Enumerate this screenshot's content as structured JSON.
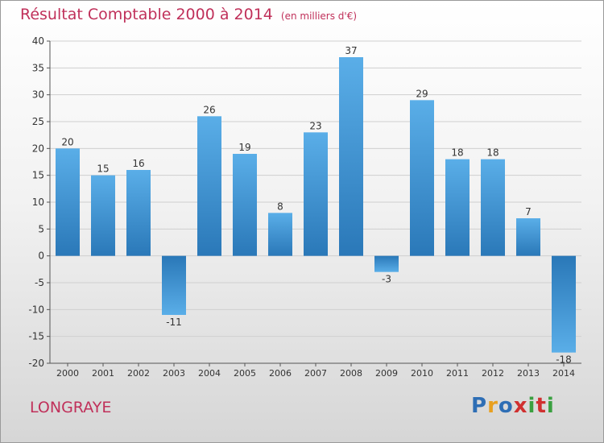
{
  "header": {
    "title": "Résultat Comptable 2000 à 2014",
    "subtitle": "(en milliers d'€)"
  },
  "footer": {
    "location": "LONGRAYE",
    "brand_letters": [
      "P",
      "r",
      "o",
      "x",
      "i",
      "t",
      "i"
    ]
  },
  "colors": {
    "title": "#c0305a",
    "bar_light": "#5aaee8",
    "bar_dark": "#2a78b8",
    "brand": [
      "#2e6eb5",
      "#e8a020",
      "#2e6eb5",
      "#d03030",
      "#3aa040",
      "#d03030",
      "#3aa040"
    ]
  },
  "chart_data": {
    "type": "bar",
    "title": "Résultat Comptable 2000 à 2014",
    "subtitle": "(en milliers d'€)",
    "xlabel": "",
    "ylabel": "",
    "ylim": [
      -20,
      40
    ],
    "yticks": [
      40,
      35,
      30,
      25,
      20,
      15,
      10,
      5,
      0,
      -5,
      -10,
      -15,
      -20
    ],
    "ytick_labels": [
      "40",
      "35",
      "30",
      "25",
      "20",
      "15",
      "10",
      "5",
      "0",
      "-5",
      "-10",
      "-15",
      "-20"
    ],
    "grid": "horizontal",
    "categories": [
      "2000",
      "2001",
      "2002",
      "2003",
      "2004",
      "2005",
      "2006",
      "2007",
      "2008",
      "2009",
      "2010",
      "2011",
      "2012",
      "2013",
      "2014"
    ],
    "values": [
      20,
      15,
      16,
      -11,
      26,
      19,
      8,
      23,
      37,
      -3,
      29,
      18,
      18,
      7,
      -18
    ],
    "value_labels": [
      "20",
      "15",
      "16",
      "-11",
      "26",
      "19",
      "8",
      "23",
      "37",
      "-3",
      "29",
      "18",
      "18",
      "7",
      "-18"
    ]
  }
}
